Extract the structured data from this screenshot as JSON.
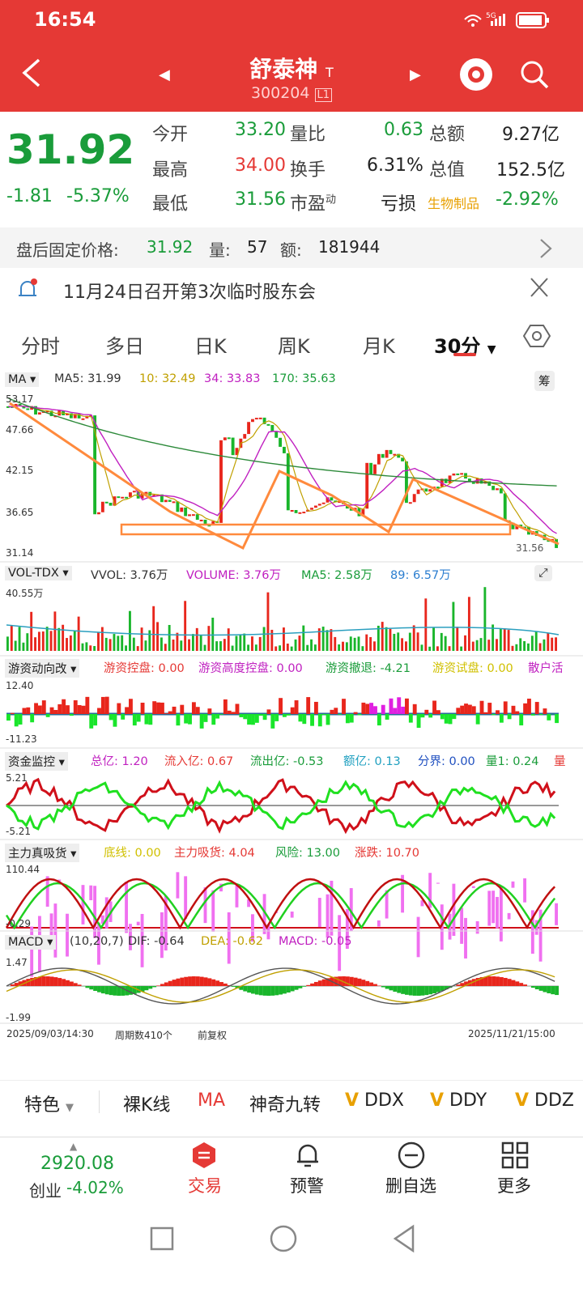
{
  "status": {
    "time": "16:54",
    "signal": "5G"
  },
  "header": {
    "name": "舒泰神",
    "name_badge": "T",
    "code": "300204",
    "level_badge": "L1"
  },
  "quote": {
    "price": "31.92",
    "change": "-1.81",
    "change_pct": "-5.37%",
    "open_label": "今开",
    "open": "33.20",
    "high_label": "最高",
    "high": "34.00",
    "low_label": "最低",
    "low": "31.56",
    "vol_ratio_label": "量比",
    "vol_ratio": "0.63",
    "turnover_label": "换手",
    "turnover": "6.31%",
    "pe_label": "市盈",
    "pe_sup": "动",
    "pe": "亏损",
    "amount_label": "总额",
    "amount": "9.27亿",
    "mktcap_label": "总值",
    "mktcap": "152.5亿",
    "sector": "生物制品",
    "sector_pct": "-2.92%"
  },
  "after_hours": {
    "label": "盘后固定价格:",
    "price": "31.92",
    "vol_label": "量:",
    "vol": "57",
    "amt_label": "额:",
    "amt": "181944"
  },
  "notice": {
    "text": "11月24日召开第3次临时股东会"
  },
  "tabs": [
    "分时",
    "多日",
    "日K",
    "周K",
    "月K",
    "30分"
  ],
  "ma": {
    "name": "MA",
    "ma5": "MA5: 31.99",
    "ma10": "10: 32.49",
    "ma34": "34: 33.83",
    "ma170": "170: 35.63",
    "right_btn": "筹",
    "y": [
      "53.17",
      "47.66",
      "42.15",
      "36.65",
      "31.14"
    ],
    "last": "31.56"
  },
  "vol": {
    "name": "VOL-TDX",
    "vvol": "VVOL: 3.76万",
    "volume": "VOLUME: 3.76万",
    "ma5": "MA5: 2.58万",
    "ma89": "89: 6.57万",
    "ymax": "40.55万"
  },
  "youzi": {
    "name": "游资动向改",
    "a": "游资控盘: 0.00",
    "b": "游资高度控盘: 0.00",
    "c": "游资撤退: -4.21",
    "d": "游资试盘: 0.00",
    "e": "散户活",
    "ymax": "12.40",
    "ymin": "-11.23"
  },
  "zijin": {
    "name": "资金监控",
    "a": "总亿: 1.20",
    "b": "流入亿: 0.67",
    "c": "流出亿: -0.53",
    "d": "额亿: 0.13",
    "e": "分界: 0.00",
    "f": "量1: 0.24",
    "g": "量",
    "ymax": "5.21",
    "ymin": "-5.21"
  },
  "zhuli": {
    "name": "主力真吸货",
    "a": "底线: 0.00",
    "b": "主力吸货: 4.04",
    "c": "风险: 13.00",
    "d": "涨跌: 10.70",
    "ymax": "110.44",
    "ymin": "-0.29"
  },
  "macd": {
    "name": "MACD",
    "params": "(10,20,7)",
    "dif": "DIF: -0.64",
    "dea": "DEA: -0.62",
    "macd": "MACD: -0.05",
    "ymax": "1.47",
    "ymin": "-1.99"
  },
  "axis": {
    "start": "2025/09/03/14:30",
    "periods": "周期数410个",
    "adj": "前复权",
    "end": "2025/11/21/15:00"
  },
  "features": [
    "特色",
    "裸K线",
    "MA",
    "神奇九转",
    "DDX",
    "DDY",
    "DDZ"
  ],
  "bottom": {
    "index_value": "2920.08",
    "index_name": "创业",
    "index_pct": "-4.02%",
    "trade": "交易",
    "alert": "预警",
    "remove": "删自选",
    "more": "更多"
  },
  "colors": {
    "red": "#e53935",
    "green": "#1a9c3a",
    "up": "#e8261c",
    "down": "#19b52b"
  }
}
